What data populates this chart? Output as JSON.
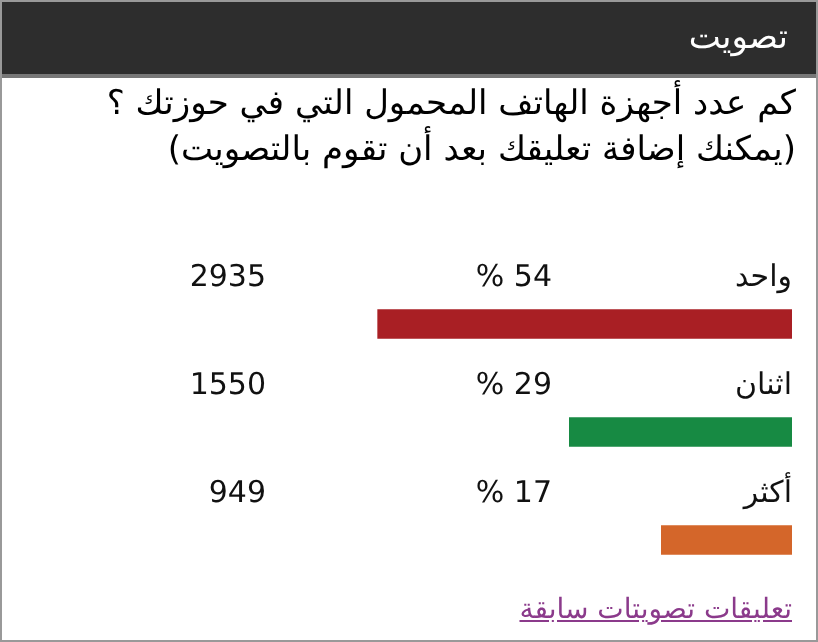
{
  "chart_data": {
    "type": "bar",
    "orientation": "horizontal",
    "title": "تصويت",
    "subtitle": "كم عدد أجهزة الهاتف المحمول التي في حوزتك ؟ (يمكنك إضافة تعليقك بعد أن تقوم بالتصويت)",
    "categories": [
      "واحد",
      "اثنان",
      "أكثر"
    ],
    "values": [
      54,
      29,
      17
    ],
    "colors": [
      "#a91f24",
      "#178a43",
      "#d4662a"
    ],
    "value_labels": [
      "% 54",
      "% 29",
      "% 17"
    ],
    "tick_labels": false,
    "annotations": [
      "2935",
      "1550",
      "949",
      "تعليقات تصويتات سابقة"
    ]
  }
}
